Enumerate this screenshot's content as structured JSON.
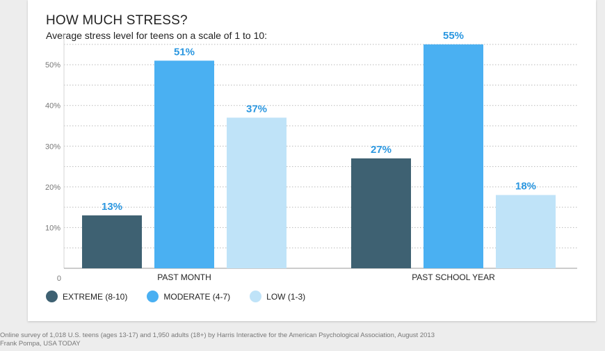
{
  "title": "HOW MUCH STRESS?",
  "subtitle": "Average stress level for teens on a scale of 1 to 10:",
  "chart_data": {
    "type": "bar",
    "categories": [
      "PAST MONTH",
      "PAST SCHOOL YEAR"
    ],
    "series": [
      {
        "name": "EXTREME (8-10)",
        "values": [
          13,
          27
        ],
        "color": "#3e6172"
      },
      {
        "name": "MODERATE (4-7)",
        "values": [
          51,
          55
        ],
        "color": "#4ab0f2"
      },
      {
        "name": "LOW (1-3)",
        "values": [
          37,
          18
        ],
        "color": "#bfe3f8"
      }
    ],
    "value_labels": [
      [
        "13%",
        "27%"
      ],
      [
        "51%",
        "55%"
      ],
      [
        "37%",
        "18%"
      ]
    ],
    "yticks": [
      "0",
      "10%",
      "20%",
      "30%",
      "40%",
      "50%"
    ],
    "ytick_values": [
      0,
      10,
      20,
      30,
      40,
      50
    ],
    "ylim": [
      0,
      56
    ],
    "grid": true,
    "legend_position": "bottom-left",
    "label_color": "#2b97e0"
  },
  "footer": {
    "source": "Online survey of 1,018 U.S. teens (ages 13-17) and 1,950 adults (18+) by Harris Interactive for the American Psychological Association, August 2013",
    "credit": "Frank Pompa, USA TODAY"
  }
}
